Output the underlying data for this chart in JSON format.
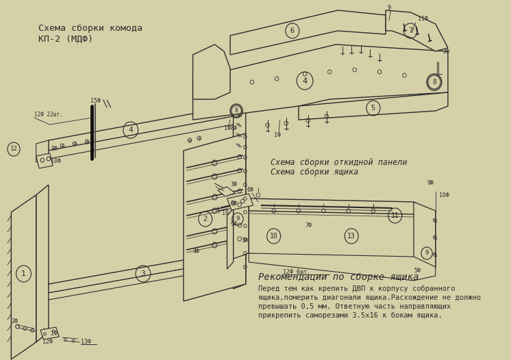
{
  "bg_color": "#d6d0a8",
  "line_color": "#2a2a2a",
  "title1": "Схема сборки комода",
  "title2": "КП-2 (МДФ)",
  "title3": "Схема сборки откидной панели",
  "title4": "Схема сборки ящика",
  "title5": "Рекомендации по сборке ящика",
  "body_text": "Перед тем как крепить ДВП к корпусу собранного\nящика,померить диагонали ящика.Расхождение не должно\nпревышать 0,5 мм. Ответную часть направляющих\nприкрепить саморезами 3.5х16 к бокам ящика.",
  "fig_width": 7.46,
  "fig_height": 5.26,
  "dpi": 100
}
